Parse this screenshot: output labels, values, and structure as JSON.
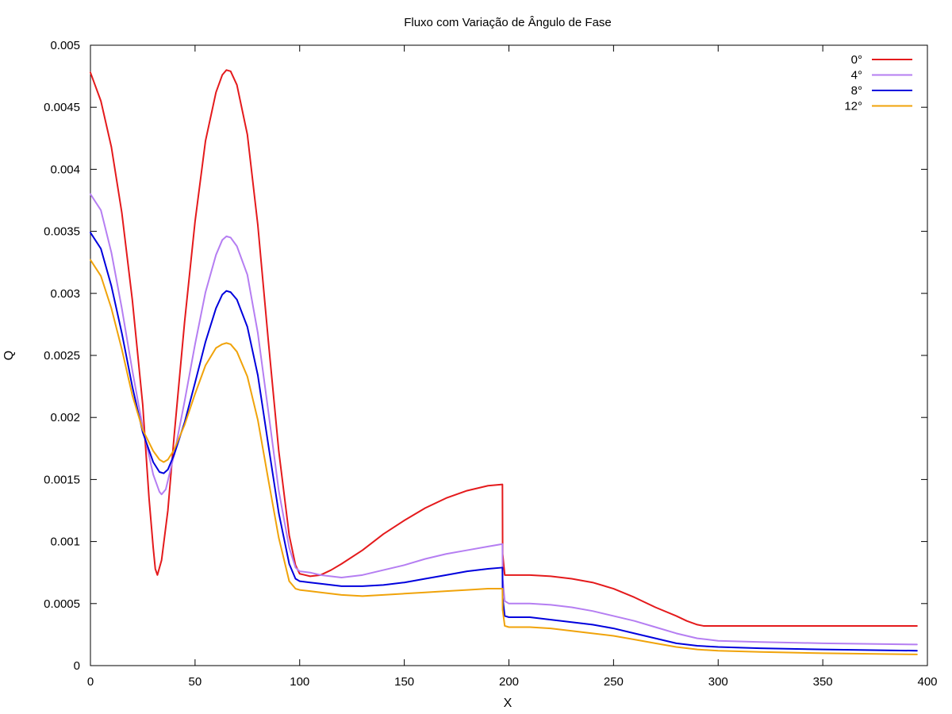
{
  "chart_data": {
    "type": "line",
    "title": "Fluxo com Variação de Ângulo de Fase",
    "xlabel": "X",
    "ylabel": "Q",
    "xlim": [
      0,
      400
    ],
    "ylim": [
      0,
      0.005
    ],
    "x_ticks": [
      0,
      50,
      100,
      150,
      200,
      250,
      300,
      350,
      400
    ],
    "x_tick_labels": [
      "0",
      "50",
      "100",
      "150",
      "200",
      "250",
      "300",
      "350",
      "400"
    ],
    "y_ticks": [
      0,
      0.0005,
      0.001,
      0.0015,
      0.002,
      0.0025,
      0.003,
      0.0035,
      0.004,
      0.0045,
      0.005
    ],
    "y_tick_labels": [
      "0",
      "0.0005",
      "0.001",
      "0.0015",
      "0.002",
      "0.0025",
      "0.003",
      "0.0035",
      "0.004",
      "0.0045",
      "0.005"
    ],
    "grid": false,
    "legend_position": "top-right",
    "series": [
      {
        "name": "0°",
        "color": "#e41a1c",
        "x": [
          0,
          5,
          10,
          15,
          20,
          25,
          28,
          30,
          31,
          32,
          34,
          37,
          40,
          45,
          50,
          55,
          60,
          63,
          65,
          67,
          70,
          75,
          80,
          85,
          90,
          95,
          98,
          100,
          105,
          110,
          115,
          120,
          130,
          140,
          150,
          160,
          170,
          180,
          190,
          196.9,
          197,
          198,
          200,
          205,
          210,
          220,
          230,
          240,
          250,
          260,
          270,
          280,
          285,
          290,
          293,
          300,
          320,
          350,
          395
        ],
        "y": [
          0.00478,
          0.00455,
          0.00418,
          0.00365,
          0.00295,
          0.0021,
          0.00135,
          0.00095,
          0.00078,
          0.00073,
          0.00085,
          0.00125,
          0.00185,
          0.00277,
          0.00358,
          0.00423,
          0.00462,
          0.00476,
          0.0048,
          0.00479,
          0.00468,
          0.00428,
          0.00355,
          0.00262,
          0.00173,
          0.00105,
          0.00081,
          0.00074,
          0.00072,
          0.00073,
          0.00077,
          0.00082,
          0.00093,
          0.00106,
          0.00117,
          0.00127,
          0.00135,
          0.00141,
          0.00145,
          0.00146,
          0.0009,
          0.00073,
          0.00073,
          0.00073,
          0.00073,
          0.00072,
          0.0007,
          0.00067,
          0.00062,
          0.00055,
          0.00047,
          0.0004,
          0.00036,
          0.00033,
          0.00032,
          0.00032,
          0.00032,
          0.00032,
          0.00032
        ]
      },
      {
        "name": "4°",
        "color": "#b57ef2",
        "x": [
          0,
          5,
          10,
          15,
          20,
          25,
          30,
          33,
          34,
          36,
          40,
          45,
          50,
          55,
          60,
          63,
          65,
          67,
          70,
          75,
          80,
          85,
          90,
          95,
          98,
          100,
          105,
          110,
          120,
          130,
          140,
          150,
          160,
          170,
          180,
          190,
          196.9,
          197,
          198,
          200,
          210,
          220,
          230,
          240,
          250,
          260,
          270,
          280,
          290,
          300,
          320,
          350,
          395
        ],
        "y": [
          0.0038,
          0.00367,
          0.00333,
          0.00288,
          0.00238,
          0.00192,
          0.00154,
          0.0014,
          0.00138,
          0.00142,
          0.0017,
          0.00213,
          0.00259,
          0.00301,
          0.00331,
          0.00343,
          0.00346,
          0.00345,
          0.00338,
          0.00315,
          0.00268,
          0.00205,
          0.00141,
          0.00095,
          0.00079,
          0.00076,
          0.00075,
          0.00073,
          0.00071,
          0.00073,
          0.00077,
          0.00081,
          0.00086,
          0.0009,
          0.00093,
          0.00096,
          0.00098,
          0.0007,
          0.00052,
          0.0005,
          0.0005,
          0.00049,
          0.00047,
          0.00044,
          0.0004,
          0.00036,
          0.00031,
          0.00026,
          0.00022,
          0.0002,
          0.00019,
          0.00018,
          0.00017
        ]
      },
      {
        "name": "8°",
        "color": "#0000dd",
        "x": [
          0,
          5,
          10,
          15,
          20,
          25,
          30,
          33,
          35,
          37,
          40,
          45,
          50,
          55,
          60,
          63,
          65,
          67,
          70,
          75,
          80,
          85,
          90,
          95,
          98,
          100,
          105,
          110,
          120,
          130,
          140,
          150,
          160,
          170,
          180,
          190,
          196.9,
          197,
          198,
          200,
          210,
          220,
          230,
          240,
          250,
          260,
          270,
          280,
          290,
          300,
          320,
          350,
          395
        ],
        "y": [
          0.00349,
          0.00336,
          0.00306,
          0.00268,
          0.00225,
          0.00188,
          0.00164,
          0.00156,
          0.00155,
          0.00158,
          0.0017,
          0.00196,
          0.00228,
          0.00261,
          0.00288,
          0.00299,
          0.00302,
          0.00301,
          0.00295,
          0.00273,
          0.00234,
          0.00178,
          0.00123,
          0.00082,
          0.0007,
          0.00068,
          0.00067,
          0.00066,
          0.00064,
          0.00064,
          0.00065,
          0.00067,
          0.0007,
          0.00073,
          0.00076,
          0.00078,
          0.00079,
          0.00055,
          0.0004,
          0.00039,
          0.00039,
          0.00037,
          0.00035,
          0.00033,
          0.0003,
          0.00026,
          0.00022,
          0.00018,
          0.00016,
          0.00015,
          0.00014,
          0.00013,
          0.00012
        ]
      },
      {
        "name": "12°",
        "color": "#f0a30a",
        "x": [
          0,
          5,
          10,
          15,
          20,
          25,
          30,
          33,
          35,
          37,
          40,
          45,
          50,
          55,
          60,
          63,
          65,
          67,
          70,
          75,
          80,
          85,
          90,
          95,
          98,
          100,
          105,
          110,
          120,
          130,
          140,
          150,
          160,
          170,
          180,
          190,
          196.9,
          197,
          198,
          200,
          210,
          220,
          230,
          240,
          250,
          260,
          270,
          280,
          290,
          300,
          320,
          350,
          395
        ],
        "y": [
          0.00327,
          0.00314,
          0.00288,
          0.00255,
          0.00218,
          0.0019,
          0.00173,
          0.00166,
          0.00164,
          0.00166,
          0.00174,
          0.00194,
          0.00219,
          0.00242,
          0.00256,
          0.00259,
          0.0026,
          0.00259,
          0.00253,
          0.00233,
          0.00198,
          0.0015,
          0.00103,
          0.00068,
          0.00062,
          0.00061,
          0.0006,
          0.00059,
          0.00057,
          0.00056,
          0.00057,
          0.00058,
          0.00059,
          0.0006,
          0.00061,
          0.00062,
          0.00062,
          0.00045,
          0.00032,
          0.00031,
          0.00031,
          0.0003,
          0.00028,
          0.00026,
          0.00024,
          0.00021,
          0.00018,
          0.00015,
          0.00013,
          0.00012,
          0.00011,
          0.0001,
          9e-05
        ]
      }
    ]
  }
}
